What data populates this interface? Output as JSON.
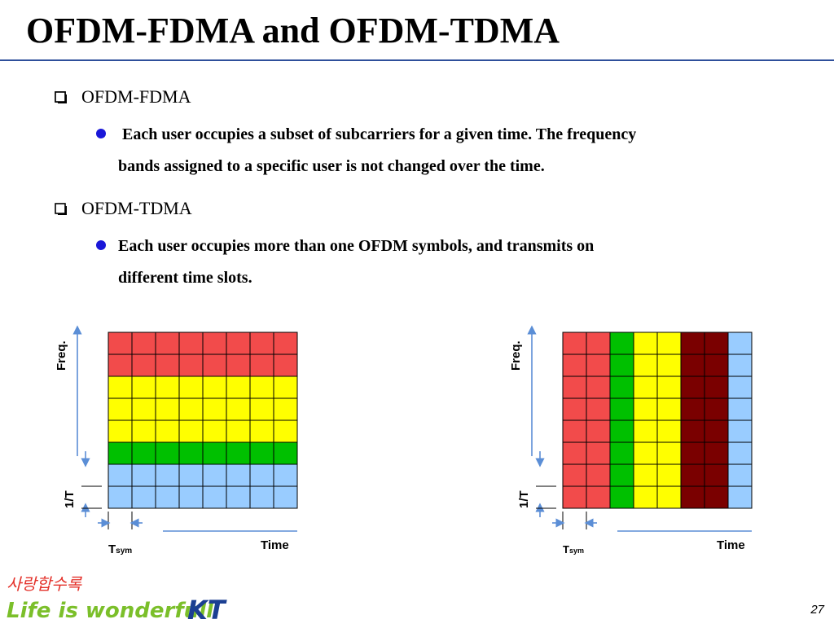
{
  "slide": {
    "title": "OFDM-FDMA and OFDM-TDMA",
    "page_number": "27"
  },
  "bullets": [
    {
      "heading": "OFDM-FDMA",
      "detail_line1": " Each user occupies a subset of subcarriers for a given time. The frequency",
      "detail_line2": "bands assigned to a specific user is not changed over the time."
    },
    {
      "heading": "OFDM-TDMA",
      "detail_line1": "Each user occupies more than one OFDM symbols, and transmits on",
      "detail_line2": "different time slots."
    }
  ],
  "colors": {
    "title_rule": "#2e4f9b",
    "bullet_dot": "#1a17d8",
    "axis_arrow": "#5b8ed6",
    "red": "#f24b4b",
    "yellow": "#ffff00",
    "green": "#00c000",
    "blue": "#99ccff",
    "dark_red": "#7a0000"
  },
  "diagrams": [
    {
      "freq_label": "Freq.",
      "spacing_label": "1/T",
      "time_label": "Time",
      "tsym_main": "T",
      "tsym_sub": "sym",
      "rows": 8,
      "cols": 8,
      "layout": "rows",
      "color_sequence": [
        "red",
        "red",
        "yellow",
        "yellow",
        "yellow",
        "green",
        "blue",
        "blue"
      ]
    },
    {
      "freq_label": "Freq.",
      "spacing_label": "1/T",
      "time_label": "Time",
      "tsym_main": "T",
      "tsym_sub": "sym",
      "rows": 8,
      "cols": 8,
      "layout": "cols",
      "color_sequence": [
        "red",
        "red",
        "green",
        "yellow",
        "yellow",
        "dark_red",
        "dark_red",
        "blue"
      ]
    }
  ],
  "logo": {
    "korean_text": "사랑합수록",
    "slogan": "Life is wonderfull",
    "brand": "KT"
  }
}
